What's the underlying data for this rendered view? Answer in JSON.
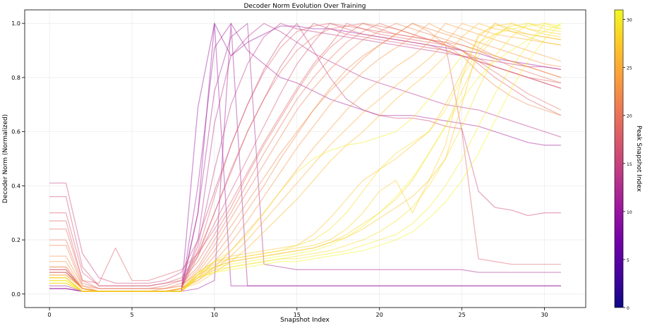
{
  "chart_data": {
    "type": "line",
    "title": "Decoder Norm Evolution Over Training",
    "xlabel": "Snapshot Index",
    "ylabel": "Decoder Norm (Normalized)",
    "xlim": [
      -1.5,
      32.5
    ],
    "ylim": [
      -0.05,
      1.05
    ],
    "x": [
      0,
      1,
      2,
      3,
      4,
      5,
      6,
      7,
      8,
      9,
      10,
      11,
      12,
      13,
      14,
      15,
      16,
      17,
      18,
      19,
      20,
      21,
      22,
      23,
      24,
      25,
      26,
      27,
      28,
      29,
      30,
      31
    ],
    "x_ticks": [
      0,
      5,
      10,
      15,
      20,
      25,
      30
    ],
    "y_ticks": [
      0.0,
      0.2,
      0.4,
      0.6,
      0.8,
      1.0
    ],
    "grid": true,
    "colorbar": {
      "label": "Peak Snapshot Index",
      "range": [
        0,
        31
      ],
      "ticks": [
        0,
        5,
        10,
        15,
        20,
        25,
        30
      ],
      "colormap": "plasma",
      "stops": [
        "#0d0887",
        "#46039f",
        "#7201a8",
        "#9c179e",
        "#bd3786",
        "#d8576b",
        "#ed7953",
        "#fb9f3a",
        "#fdca26",
        "#f0f921"
      ]
    },
    "series": [
      {
        "peak": 10,
        "values": [
          0.02,
          0.02,
          0.01,
          0.01,
          0.01,
          0.01,
          0.01,
          0.01,
          0.01,
          0.69,
          1.0,
          0.03,
          0.03,
          0.03,
          0.03,
          0.03,
          0.03,
          0.03,
          0.03,
          0.03,
          0.03,
          0.03,
          0.03,
          0.03,
          0.03,
          0.03,
          0.03,
          0.03,
          0.03,
          0.03,
          0.03,
          0.03
        ]
      },
      {
        "peak": 10,
        "values": [
          0.02,
          0.02,
          0.01,
          0.01,
          0.01,
          0.01,
          0.01,
          0.01,
          0.01,
          0.3,
          1.0,
          0.88,
          0.93,
          0.96,
          0.99,
          0.99,
          0.98,
          0.98,
          0.97,
          0.96,
          0.95,
          0.94,
          0.93,
          0.92,
          0.91,
          0.9,
          0.89,
          0.87,
          0.86,
          0.85,
          0.84,
          0.83
        ]
      },
      {
        "peak": 11,
        "values": [
          0.02,
          0.02,
          0.01,
          0.01,
          0.01,
          0.01,
          0.01,
          0.01,
          0.01,
          0.02,
          0.05,
          1.0,
          0.03,
          0.03,
          0.03,
          0.03,
          0.03,
          0.03,
          0.03,
          0.03,
          0.03,
          0.03,
          0.03,
          0.03,
          0.03,
          0.03,
          0.03,
          0.03,
          0.03,
          0.03,
          0.03,
          0.03
        ]
      },
      {
        "peak": 11,
        "values": [
          0.03,
          0.03,
          0.01,
          0.01,
          0.01,
          0.01,
          0.01,
          0.01,
          0.01,
          0.4,
          0.91,
          1.0,
          0.9,
          0.85,
          0.8,
          0.78,
          0.75,
          0.72,
          0.7,
          0.68,
          0.66,
          0.66,
          0.66,
          0.65,
          0.64,
          0.63,
          0.62,
          0.6,
          0.58,
          0.56,
          0.55,
          0.55
        ]
      },
      {
        "peak": 12,
        "values": [
          0.08,
          0.08,
          0.02,
          0.01,
          0.01,
          0.01,
          0.01,
          0.01,
          0.02,
          0.3,
          0.75,
          0.95,
          1.0,
          0.11,
          0.1,
          0.09,
          0.09,
          0.09,
          0.09,
          0.09,
          0.09,
          0.09,
          0.09,
          0.09,
          0.09,
          0.09,
          0.08,
          0.08,
          0.08,
          0.08,
          0.08,
          0.08
        ]
      },
      {
        "peak": 13,
        "values": [
          0.08,
          0.08,
          0.02,
          0.01,
          0.01,
          0.01,
          0.01,
          0.01,
          0.02,
          0.2,
          0.63,
          0.88,
          0.95,
          1.0,
          0.97,
          0.93,
          0.89,
          0.86,
          0.83,
          0.8,
          0.78,
          0.76,
          0.74,
          0.72,
          0.7,
          0.69,
          0.68,
          0.66,
          0.64,
          0.62,
          0.6,
          0.58
        ]
      },
      {
        "peak": 14,
        "values": [
          0.09,
          0.09,
          0.02,
          0.01,
          0.01,
          0.01,
          0.01,
          0.01,
          0.02,
          0.18,
          0.46,
          0.7,
          0.85,
          0.95,
          1.0,
          0.98,
          0.97,
          0.96,
          0.95,
          0.94,
          0.93,
          0.92,
          0.91,
          0.9,
          0.89,
          0.88,
          0.87,
          0.86,
          0.85,
          0.84,
          0.84,
          0.83
        ]
      },
      {
        "peak": 15,
        "values": [
          0.41,
          0.41,
          0.15,
          0.06,
          0.04,
          0.04,
          0.04,
          0.05,
          0.08,
          0.2,
          0.38,
          0.55,
          0.7,
          0.83,
          0.93,
          1.0,
          0.9,
          0.8,
          0.72,
          0.68,
          0.66,
          0.65,
          0.65,
          0.64,
          0.62,
          0.61,
          0.38,
          0.32,
          0.31,
          0.29,
          0.3,
          0.3
        ]
      },
      {
        "peak": 16,
        "values": [
          0.36,
          0.36,
          0.1,
          0.03,
          0.03,
          0.03,
          0.03,
          0.04,
          0.06,
          0.15,
          0.3,
          0.45,
          0.6,
          0.72,
          0.84,
          0.93,
          1.0,
          0.98,
          0.96,
          0.95,
          0.94,
          0.93,
          0.92,
          0.91,
          0.9,
          0.88,
          0.86,
          0.84,
          0.82,
          0.8,
          0.78,
          0.76
        ]
      },
      {
        "peak": 17,
        "values": [
          0.3,
          0.3,
          0.08,
          0.03,
          0.03,
          0.03,
          0.03,
          0.04,
          0.05,
          0.14,
          0.26,
          0.38,
          0.5,
          0.62,
          0.74,
          0.85,
          0.93,
          1.0,
          0.98,
          0.96,
          0.95,
          0.94,
          0.93,
          0.92,
          0.9,
          0.88,
          0.86,
          0.84,
          0.82,
          0.8,
          0.78,
          0.76
        ]
      },
      {
        "peak": 18,
        "values": [
          0.27,
          0.27,
          0.05,
          0.04,
          0.17,
          0.05,
          0.05,
          0.07,
          0.09,
          0.15,
          0.24,
          0.34,
          0.45,
          0.56,
          0.66,
          0.76,
          0.85,
          0.92,
          1.0,
          0.98,
          0.96,
          0.95,
          0.94,
          0.93,
          0.92,
          0.6,
          0.13,
          0.12,
          0.11,
          0.11,
          0.11,
          0.11
        ]
      },
      {
        "peak": 18,
        "values": [
          0.09,
          0.09,
          0.02,
          0.01,
          0.01,
          0.01,
          0.01,
          0.01,
          0.02,
          0.16,
          0.36,
          0.55,
          0.7,
          0.82,
          0.91,
          0.97,
          0.99,
          1.0,
          0.99,
          0.98,
          0.97,
          0.96,
          0.95,
          0.94,
          0.93,
          0.9,
          0.85,
          0.8,
          0.76,
          0.72,
          0.69,
          0.66
        ]
      },
      {
        "peak": 19,
        "values": [
          0.24,
          0.24,
          0.05,
          0.02,
          0.02,
          0.02,
          0.02,
          0.03,
          0.05,
          0.12,
          0.22,
          0.32,
          0.44,
          0.55,
          0.65,
          0.75,
          0.84,
          0.91,
          0.96,
          1.0,
          0.98,
          0.96,
          0.95,
          0.94,
          0.92,
          0.9,
          0.87,
          0.84,
          0.82,
          0.8,
          0.79,
          0.78
        ]
      },
      {
        "peak": 19,
        "values": [
          0.1,
          0.1,
          0.02,
          0.01,
          0.01,
          0.01,
          0.01,
          0.01,
          0.02,
          0.14,
          0.3,
          0.46,
          0.6,
          0.72,
          0.82,
          0.9,
          0.95,
          0.98,
          0.99,
          1.0,
          0.99,
          0.98,
          0.96,
          0.94,
          0.92,
          0.9,
          0.86,
          0.82,
          0.78,
          0.74,
          0.71,
          0.68
        ]
      },
      {
        "peak": 20,
        "values": [
          0.2,
          0.2,
          0.04,
          0.02,
          0.02,
          0.02,
          0.02,
          0.02,
          0.04,
          0.1,
          0.2,
          0.3,
          0.41,
          0.52,
          0.62,
          0.72,
          0.8,
          0.87,
          0.93,
          0.97,
          1.0,
          0.98,
          0.96,
          0.94,
          0.93,
          0.92,
          0.9,
          0.87,
          0.84,
          0.82,
          0.8,
          0.78
        ]
      },
      {
        "peak": 21,
        "values": [
          0.18,
          0.18,
          0.03,
          0.02,
          0.02,
          0.02,
          0.02,
          0.02,
          0.03,
          0.09,
          0.18,
          0.28,
          0.38,
          0.48,
          0.58,
          0.68,
          0.76,
          0.83,
          0.89,
          0.94,
          0.97,
          1.0,
          0.98,
          0.96,
          0.94,
          0.92,
          0.9,
          0.88,
          0.86,
          0.84,
          0.82,
          0.8
        ]
      },
      {
        "peak": 22,
        "values": [
          0.14,
          0.14,
          0.03,
          0.01,
          0.01,
          0.01,
          0.01,
          0.02,
          0.03,
          0.08,
          0.16,
          0.25,
          0.34,
          0.43,
          0.52,
          0.6,
          0.68,
          0.75,
          0.81,
          0.87,
          0.92,
          0.96,
          1.0,
          0.98,
          0.96,
          0.94,
          0.91,
          0.88,
          0.86,
          0.84,
          0.82,
          0.8
        ]
      },
      {
        "peak": 22,
        "values": [
          0.07,
          0.07,
          0.02,
          0.01,
          0.01,
          0.01,
          0.01,
          0.01,
          0.02,
          0.07,
          0.14,
          0.22,
          0.31,
          0.4,
          0.5,
          0.59,
          0.68,
          0.76,
          0.83,
          0.88,
          0.92,
          0.96,
          1.0,
          0.97,
          0.92,
          0.88,
          0.82,
          0.77,
          0.73,
          0.7,
          0.68,
          0.66
        ]
      },
      {
        "peak": 23,
        "values": [
          0.12,
          0.12,
          0.02,
          0.01,
          0.01,
          0.01,
          0.01,
          0.01,
          0.02,
          0.06,
          0.12,
          0.19,
          0.27,
          0.36,
          0.45,
          0.54,
          0.62,
          0.7,
          0.76,
          0.82,
          0.87,
          0.91,
          0.95,
          1.0,
          0.97,
          0.95,
          0.93,
          0.91,
          0.89,
          0.87,
          0.85,
          0.84
        ]
      },
      {
        "peak": 24,
        "values": [
          0.1,
          0.1,
          0.02,
          0.01,
          0.01,
          0.01,
          0.01,
          0.01,
          0.02,
          0.05,
          0.1,
          0.16,
          0.23,
          0.3,
          0.38,
          0.46,
          0.54,
          0.61,
          0.68,
          0.74,
          0.79,
          0.84,
          0.88,
          0.93,
          1.0,
          0.98,
          0.96,
          0.94,
          0.92,
          0.9,
          0.88,
          0.86
        ]
      },
      {
        "peak": 25,
        "values": [
          0.08,
          0.08,
          0.02,
          0.01,
          0.01,
          0.01,
          0.01,
          0.01,
          0.02,
          0.05,
          0.09,
          0.14,
          0.2,
          0.27,
          0.34,
          0.41,
          0.48,
          0.55,
          0.61,
          0.67,
          0.72,
          0.77,
          0.82,
          0.87,
          0.93,
          1.0,
          0.98,
          0.96,
          0.95,
          0.94,
          0.93,
          0.92
        ]
      },
      {
        "peak": 26,
        "values": [
          0.07,
          0.07,
          0.02,
          0.01,
          0.01,
          0.01,
          0.01,
          0.01,
          0.02,
          0.04,
          0.08,
          0.12,
          0.17,
          0.23,
          0.29,
          0.35,
          0.42,
          0.49,
          0.55,
          0.6,
          0.66,
          0.72,
          0.77,
          0.82,
          0.88,
          0.95,
          1.0,
          0.98,
          0.97,
          0.96,
          0.95,
          0.94
        ]
      },
      {
        "peak": 27,
        "values": [
          0.06,
          0.06,
          0.01,
          0.01,
          0.01,
          0.01,
          0.01,
          0.01,
          0.02,
          0.08,
          0.12,
          0.14,
          0.15,
          0.16,
          0.17,
          0.18,
          0.22,
          0.28,
          0.35,
          0.42,
          0.46,
          0.5,
          0.55,
          0.6,
          0.7,
          0.82,
          0.95,
          1.0,
          0.98,
          0.96,
          0.95,
          0.94
        ]
      },
      {
        "peak": 28,
        "values": [
          0.06,
          0.06,
          0.01,
          0.01,
          0.01,
          0.01,
          0.01,
          0.01,
          0.01,
          0.07,
          0.1,
          0.12,
          0.13,
          0.14,
          0.15,
          0.16,
          0.17,
          0.19,
          0.22,
          0.26,
          0.3,
          0.35,
          0.42,
          0.52,
          0.62,
          0.75,
          0.88,
          0.95,
          1.0,
          0.98,
          0.97,
          0.96
        ]
      },
      {
        "peak": 29,
        "values": [
          0.05,
          0.05,
          0.01,
          0.01,
          0.01,
          0.01,
          0.01,
          0.01,
          0.01,
          0.06,
          0.09,
          0.1,
          0.11,
          0.12,
          0.13,
          0.14,
          0.15,
          0.16,
          0.18,
          0.2,
          0.23,
          0.27,
          0.32,
          0.4,
          0.5,
          0.62,
          0.76,
          0.88,
          0.95,
          1.0,
          0.98,
          0.97
        ]
      },
      {
        "peak": 30,
        "values": [
          0.04,
          0.04,
          0.01,
          0.01,
          0.01,
          0.01,
          0.01,
          0.01,
          0.01,
          0.06,
          0.08,
          0.1,
          0.11,
          0.12,
          0.13,
          0.13,
          0.14,
          0.15,
          0.16,
          0.18,
          0.2,
          0.22,
          0.26,
          0.32,
          0.4,
          0.5,
          0.62,
          0.74,
          0.84,
          0.92,
          1.0,
          0.98
        ]
      },
      {
        "peak": 31,
        "values": [
          0.04,
          0.04,
          0.01,
          0.01,
          0.01,
          0.01,
          0.01,
          0.01,
          0.01,
          0.06,
          0.08,
          0.09,
          0.1,
          0.11,
          0.12,
          0.12,
          0.13,
          0.14,
          0.15,
          0.16,
          0.18,
          0.2,
          0.23,
          0.28,
          0.34,
          0.42,
          0.52,
          0.64,
          0.76,
          0.86,
          0.94,
          1.0
        ]
      },
      {
        "peak": 31,
        "values": [
          0.05,
          0.05,
          0.01,
          0.01,
          0.01,
          0.01,
          0.01,
          0.01,
          0.01,
          0.08,
          0.1,
          0.11,
          0.12,
          0.13,
          0.14,
          0.15,
          0.16,
          0.18,
          0.21,
          0.25,
          0.3,
          0.36,
          0.43,
          0.52,
          0.62,
          0.72,
          0.8,
          0.86,
          0.9,
          0.94,
          0.97,
          1.0
        ]
      },
      {
        "peak": 30,
        "values": [
          0.06,
          0.06,
          0.01,
          0.01,
          0.01,
          0.01,
          0.01,
          0.01,
          0.01,
          0.07,
          0.12,
          0.16,
          0.22,
          0.3,
          0.38,
          0.45,
          0.5,
          0.53,
          0.55,
          0.56,
          0.58,
          0.6,
          0.65,
          0.72,
          0.8,
          0.88,
          0.93,
          0.96,
          0.98,
          0.99,
          1.0,
          0.99
        ]
      },
      {
        "peak": 29,
        "values": [
          0.05,
          0.05,
          0.01,
          0.01,
          0.01,
          0.01,
          0.01,
          0.01,
          0.01,
          0.08,
          0.12,
          0.13,
          0.14,
          0.15,
          0.16,
          0.18,
          0.2,
          0.24,
          0.3,
          0.38,
          0.46,
          0.52,
          0.56,
          0.6,
          0.68,
          0.8,
          0.9,
          0.96,
          0.99,
          1.0,
          0.99,
          0.98
        ]
      },
      {
        "peak": 28,
        "values": [
          0.04,
          0.04,
          0.01,
          0.01,
          0.01,
          0.01,
          0.01,
          0.01,
          0.01,
          0.07,
          0.11,
          0.13,
          0.14,
          0.15,
          0.16,
          0.17,
          0.18,
          0.2,
          0.24,
          0.3,
          0.38,
          0.42,
          0.3,
          0.42,
          0.55,
          0.8,
          0.96,
          0.99,
          1.0,
          0.98,
          0.96,
          0.95
        ]
      },
      {
        "peak": 27,
        "values": [
          0.06,
          0.06,
          0.01,
          0.01,
          0.01,
          0.01,
          0.01,
          0.01,
          0.01,
          0.06,
          0.1,
          0.12,
          0.13,
          0.14,
          0.15,
          0.16,
          0.17,
          0.19,
          0.21,
          0.24,
          0.28,
          0.32,
          0.36,
          0.42,
          0.5,
          0.7,
          0.92,
          1.0,
          0.97,
          0.95,
          0.93,
          0.92
        ]
      }
    ]
  }
}
